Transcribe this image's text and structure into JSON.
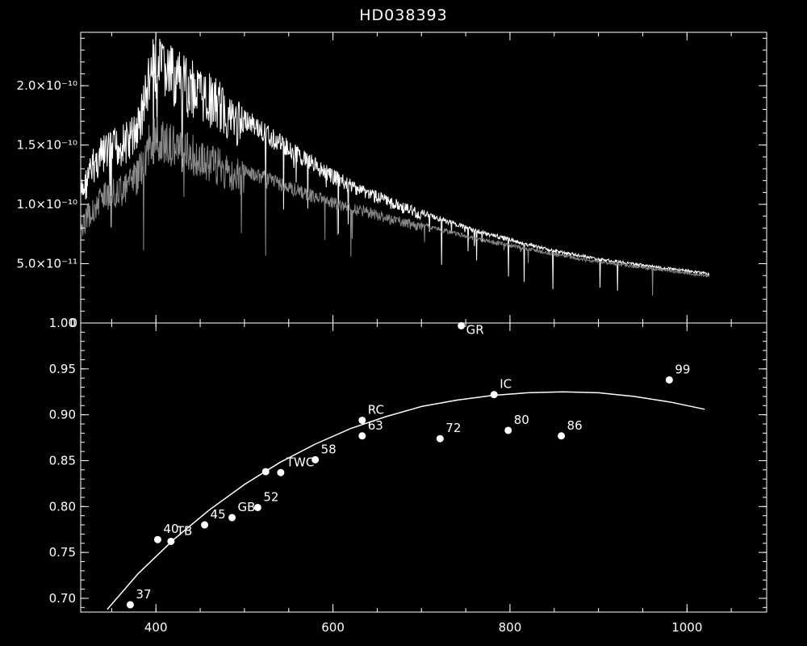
{
  "title": "HD038393",
  "chart_data": [
    {
      "type": "line",
      "panel": "spectrum",
      "xlim": [
        315,
        1090
      ],
      "ylim": [
        0,
        2.45e-10
      ],
      "ytick_values": [
        0,
        5e-11,
        1e-10,
        1.5e-10,
        2e-10
      ],
      "yticks": [
        "0",
        "5.0×10⁻¹¹",
        "1.0×10⁻¹⁰",
        "1.5×10⁻¹⁰",
        "2.0×10⁻¹⁰"
      ],
      "series": [
        {
          "color": "#ffffff",
          "x": [
            315,
            330,
            345,
            360,
            370,
            380,
            390,
            395,
            400,
            410,
            420,
            430,
            440,
            450,
            460,
            470,
            480,
            490,
            500,
            520,
            540,
            560,
            580,
            600,
            620,
            640,
            660,
            680,
            700,
            720,
            740,
            760,
            780,
            800,
            820,
            840,
            860,
            880,
            900,
            920,
            940,
            960,
            980,
            1000,
            1020,
            1025
          ],
          "y": [
            1.2e-10,
            1.5e-10,
            1.62e-10,
            1.68e-10,
            1.72e-10,
            1.85e-10,
            2.2e-10,
            2.38e-10,
            2.42e-10,
            2.38e-10,
            2.32e-10,
            2.27e-10,
            2.22e-10,
            2.17e-10,
            2.11e-10,
            2.05e-10,
            1.98e-10,
            1.9e-10,
            1.82e-10,
            1.7e-10,
            1.6e-10,
            1.5e-10,
            1.4e-10,
            1.3e-10,
            1.22e-10,
            1.15e-10,
            1.08e-10,
            1.02e-10,
            9.6e-11,
            9e-11,
            8.5e-11,
            8e-11,
            7.6e-11,
            7.2e-11,
            6.8e-11,
            6.4e-11,
            6.1e-11,
            5.8e-11,
            5.5e-11,
            5.3e-11,
            5.1e-11,
            4.9e-11,
            4.7e-11,
            4.5e-11,
            4.3e-11,
            4.2e-11
          ]
        },
        {
          "color": "#888888",
          "x": [
            315,
            330,
            345,
            360,
            370,
            380,
            390,
            395,
            400,
            410,
            420,
            430,
            440,
            450,
            460,
            470,
            480,
            490,
            500,
            520,
            540,
            560,
            580,
            600,
            620,
            640,
            660,
            680,
            700,
            720,
            740,
            760,
            780,
            800,
            820,
            840,
            860,
            880,
            900,
            920,
            940,
            960,
            980,
            1000,
            1020,
            1025
          ],
          "y": [
            9e-11,
            1.1e-10,
            1.2e-10,
            1.25e-10,
            1.3e-10,
            1.4e-10,
            1.62e-10,
            1.74e-10,
            1.76e-10,
            1.72e-10,
            1.68e-10,
            1.64e-10,
            1.6e-10,
            1.56e-10,
            1.52e-10,
            1.48e-10,
            1.44e-10,
            1.4e-10,
            1.36e-10,
            1.29e-10,
            1.23e-10,
            1.17e-10,
            1.12e-10,
            1.07e-10,
            1.02e-10,
            9.8e-11,
            9.3e-11,
            8.9e-11,
            8.5e-11,
            8.1e-11,
            7.7e-11,
            7.3e-11,
            7e-11,
            6.7e-11,
            6.4e-11,
            6.1e-11,
            5.8e-11,
            5.5e-11,
            5.3e-11,
            5.1e-11,
            4.9e-11,
            4.7e-11,
            4.5e-11,
            4.3e-11,
            4.1e-11,
            4e-11
          ]
        }
      ]
    },
    {
      "type": "scatter",
      "panel": "ratio",
      "xlim": [
        315,
        1090
      ],
      "ylim": [
        0.685,
        1.0
      ],
      "xticks": [
        400,
        600,
        800,
        1000
      ],
      "yticks": [
        0.7,
        0.75,
        0.8,
        0.85,
        0.9,
        0.95,
        1.0
      ],
      "ytick_labels": [
        "0.70",
        "0.75",
        "0.80",
        "0.85",
        "0.90",
        "0.95",
        "1.00"
      ],
      "points": [
        {
          "x": 371,
          "y": 0.693,
          "label": "37"
        },
        {
          "x": 402,
          "y": 0.764,
          "label": "40"
        },
        {
          "x": 417,
          "y": 0.762,
          "label": "TB"
        },
        {
          "x": 455,
          "y": 0.78,
          "label": "45"
        },
        {
          "x": 486,
          "y": 0.788,
          "label": "GB"
        },
        {
          "x": 515,
          "y": 0.799,
          "label": "52"
        },
        {
          "x": 524,
          "y": 0.838,
          "label": ""
        },
        {
          "x": 541,
          "y": 0.837,
          "label": "TWC"
        },
        {
          "x": 580,
          "y": 0.851,
          "label": "58"
        },
        {
          "x": 633,
          "y": 0.894,
          "label": "RC"
        },
        {
          "x": 633,
          "y": 0.877,
          "label": "63"
        },
        {
          "x": 721,
          "y": 0.874,
          "label": "72"
        },
        {
          "x": 745,
          "y": 0.997,
          "label": "GR"
        },
        {
          "x": 782,
          "y": 0.922,
          "label": "IC"
        },
        {
          "x": 798,
          "y": 0.883,
          "label": "80"
        },
        {
          "x": 858,
          "y": 0.877,
          "label": "86"
        },
        {
          "x": 980,
          "y": 0.938,
          "label": "99"
        }
      ],
      "fit": {
        "x": [
          345,
          380,
          420,
          460,
          500,
          540,
          580,
          620,
          660,
          700,
          740,
          780,
          820,
          860,
          900,
          940,
          980,
          1020
        ],
        "y": [
          0.688,
          0.727,
          0.764,
          0.796,
          0.824,
          0.848,
          0.868,
          0.885,
          0.898,
          0.909,
          0.916,
          0.921,
          0.924,
          0.925,
          0.924,
          0.92,
          0.914,
          0.906
        ]
      }
    }
  ]
}
